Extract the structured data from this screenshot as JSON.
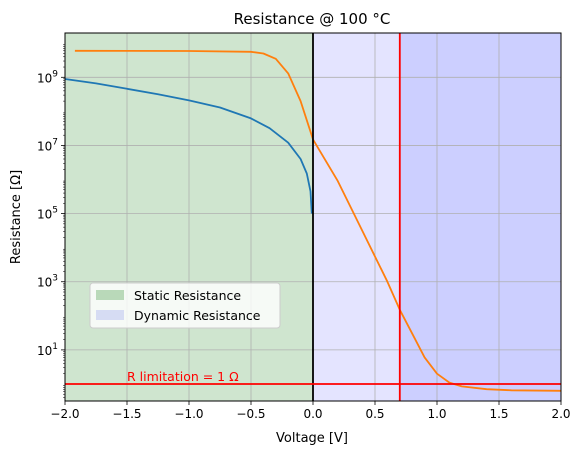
{
  "chart_data": {
    "type": "line",
    "title": "Resistance @ 100 °C",
    "xlabel": "Voltage [V]",
    "ylabel": "Resistance [Ω]",
    "xlim": [
      -2.0,
      2.0
    ],
    "ylim_log10": [
      -0.5,
      10.3
    ],
    "y_scale": "log",
    "grid": true,
    "x_ticks": [
      "−2.0",
      "−1.5",
      "−1.0",
      "−0.5",
      "0.0",
      "0.5",
      "1.0",
      "1.5",
      "2.0"
    ],
    "x_tick_values": [
      -2.0,
      -1.5,
      -1.0,
      -0.5,
      0.0,
      0.5,
      1.0,
      1.5,
      2.0
    ],
    "y_ticks": [
      {
        "base": "10",
        "exp": "1",
        "log10": 1
      },
      {
        "base": "10",
        "exp": "3",
        "log10": 3
      },
      {
        "base": "10",
        "exp": "5",
        "log10": 5
      },
      {
        "base": "10",
        "exp": "7",
        "log10": 7
      },
      {
        "base": "10",
        "exp": "9",
        "log10": 9
      }
    ],
    "regions": [
      {
        "label": "Static Resistance",
        "x_from": -2.0,
        "x_to": 0.0,
        "color": "#cfe5cf"
      },
      {
        "label": "Dynamic Resistance",
        "x_from": 0.0,
        "x_to": 0.7,
        "color": "#e4e4ff"
      },
      {
        "label": "",
        "x_from": 0.7,
        "x_to": 2.0,
        "color": "#cccfff"
      }
    ],
    "legend": {
      "placement": "lower-left",
      "entries": [
        {
          "label": "Static Resistance",
          "color": "#b9d9b9"
        },
        {
          "label": "Dynamic Resistance",
          "color": "#d6dcf3"
        }
      ]
    },
    "series": [
      {
        "color": "#1f77b4",
        "points": [
          [
            -2.0,
            890000000.0
          ],
          [
            -1.75,
            660000000.0
          ],
          [
            -1.5,
            460000000.0
          ],
          [
            -1.25,
            320000000.0
          ],
          [
            -1.0,
            210000000.0
          ],
          [
            -0.75,
            130000000.0
          ],
          [
            -0.5,
            62000000.0
          ],
          [
            -0.35,
            32000000.0
          ],
          [
            -0.2,
            12000000.0
          ],
          [
            -0.1,
            4000000.0
          ],
          [
            -0.05,
            1500000.0
          ],
          [
            -0.02,
            450000.0
          ],
          [
            -0.01,
            100000.0
          ]
        ]
      },
      {
        "color": "#ff7f0e",
        "points": [
          [
            -1.92,
            6000000000.0
          ],
          [
            -1.0,
            5900000000.0
          ],
          [
            -0.5,
            5600000000.0
          ],
          [
            -0.4,
            5000000000.0
          ],
          [
            -0.3,
            3500000000.0
          ],
          [
            -0.2,
            1300000000.0
          ],
          [
            -0.1,
            200000000.0
          ],
          [
            0.0,
            15000000.0
          ],
          [
            0.2,
            900000.0
          ],
          [
            0.4,
            30000.0
          ],
          [
            0.6,
            1000.0
          ],
          [
            0.7,
            150.0
          ],
          [
            0.8,
            30.0
          ],
          [
            0.9,
            6.0
          ],
          [
            1.0,
            2.0
          ],
          [
            1.1,
            1.1
          ],
          [
            1.2,
            0.85
          ],
          [
            1.4,
            0.7
          ],
          [
            1.6,
            0.65
          ],
          [
            2.0,
            0.63
          ]
        ]
      }
    ],
    "reference_lines": [
      {
        "orientation": "vertical",
        "x": 0.0,
        "color": "#000000"
      },
      {
        "orientation": "vertical",
        "x": 0.7,
        "color": "#ff0000"
      },
      {
        "orientation": "horizontal",
        "y": 1.0,
        "color": "#ff0000"
      }
    ],
    "annotation": {
      "text": "R limitation = 1 Ω",
      "x": -1.5,
      "y": 1.0,
      "color": "#ff0000"
    }
  }
}
